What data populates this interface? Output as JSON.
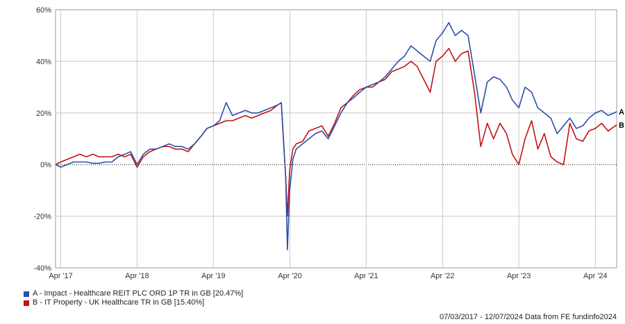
{
  "chart_data": {
    "type": "line",
    "title": "",
    "xlabel": "",
    "ylabel": "",
    "x_start": "2017-03-07",
    "x_end": "2024-07-12",
    "ylim": [
      -40,
      60
    ],
    "y_ticks": [
      -40,
      -20,
      0,
      20,
      40,
      60
    ],
    "y_tick_labels": [
      "-40%",
      "-20%",
      "0%",
      "20%",
      "40%",
      "60%"
    ],
    "x_ticks": [
      {
        "date": "2017-04-01",
        "label": "Apr '17"
      },
      {
        "date": "2018-04-01",
        "label": "Apr '18"
      },
      {
        "date": "2019-04-01",
        "label": "Apr '19"
      },
      {
        "date": "2020-04-01",
        "label": "Apr '20"
      },
      {
        "date": "2021-04-01",
        "label": "Apr '21"
      },
      {
        "date": "2022-04-01",
        "label": "Apr '22"
      },
      {
        "date": "2023-04-01",
        "label": "Apr '23"
      },
      {
        "date": "2024-04-01",
        "label": "Apr '24"
      }
    ],
    "grid": true,
    "zero_line": "dotted",
    "series": [
      {
        "name": "A - Impact - Healthcare REIT PLC ORD 1P TR in GB [20.47%]",
        "end_label": "A",
        "color": "#2850a8",
        "points": [
          [
            "2017-03-07",
            0
          ],
          [
            "2017-04-01",
            -1
          ],
          [
            "2017-05-01",
            0
          ],
          [
            "2017-06-01",
            1
          ],
          [
            "2017-07-01",
            1
          ],
          [
            "2017-08-01",
            1
          ],
          [
            "2017-09-01",
            0.5
          ],
          [
            "2017-10-01",
            0.5
          ],
          [
            "2017-11-01",
            1
          ],
          [
            "2017-12-01",
            1
          ],
          [
            "2018-01-01",
            3
          ],
          [
            "2018-02-01",
            4
          ],
          [
            "2018-03-01",
            5
          ],
          [
            "2018-04-01",
            0
          ],
          [
            "2018-05-01",
            4
          ],
          [
            "2018-06-01",
            6
          ],
          [
            "2018-07-01",
            6
          ],
          [
            "2018-08-01",
            7
          ],
          [
            "2018-09-01",
            8
          ],
          [
            "2018-10-01",
            7
          ],
          [
            "2018-11-01",
            7
          ],
          [
            "2018-12-01",
            6
          ],
          [
            "2019-01-01",
            8
          ],
          [
            "2019-02-01",
            11
          ],
          [
            "2019-03-01",
            14
          ],
          [
            "2019-04-01",
            15
          ],
          [
            "2019-05-01",
            17
          ],
          [
            "2019-06-01",
            24
          ],
          [
            "2019-07-01",
            19
          ],
          [
            "2019-08-01",
            20
          ],
          [
            "2019-09-01",
            21
          ],
          [
            "2019-10-01",
            20
          ],
          [
            "2019-11-01",
            20
          ],
          [
            "2019-12-01",
            21
          ],
          [
            "2020-01-01",
            22
          ],
          [
            "2020-02-01",
            23
          ],
          [
            "2020-02-20",
            24
          ],
          [
            "2020-03-01",
            10
          ],
          [
            "2020-03-12",
            -5
          ],
          [
            "2020-03-20",
            -33
          ],
          [
            "2020-03-31",
            -10
          ],
          [
            "2020-04-15",
            2
          ],
          [
            "2020-05-01",
            6
          ],
          [
            "2020-06-01",
            8
          ],
          [
            "2020-07-01",
            10
          ],
          [
            "2020-08-01",
            12
          ],
          [
            "2020-09-01",
            13
          ],
          [
            "2020-10-01",
            10
          ],
          [
            "2020-11-01",
            15
          ],
          [
            "2020-12-01",
            20
          ],
          [
            "2021-01-01",
            24
          ],
          [
            "2021-02-01",
            26
          ],
          [
            "2021-03-01",
            28
          ],
          [
            "2021-04-01",
            30
          ],
          [
            "2021-05-01",
            31
          ],
          [
            "2021-06-01",
            32
          ],
          [
            "2021-07-01",
            34
          ],
          [
            "2021-08-01",
            37
          ],
          [
            "2021-09-01",
            40
          ],
          [
            "2021-10-01",
            42
          ],
          [
            "2021-11-01",
            46
          ],
          [
            "2021-12-01",
            44
          ],
          [
            "2022-01-01",
            42
          ],
          [
            "2022-02-01",
            40
          ],
          [
            "2022-03-01",
            48
          ],
          [
            "2022-04-01",
            51
          ],
          [
            "2022-05-01",
            55
          ],
          [
            "2022-06-01",
            50
          ],
          [
            "2022-07-01",
            52
          ],
          [
            "2022-08-01",
            50
          ],
          [
            "2022-09-01",
            35
          ],
          [
            "2022-10-01",
            20
          ],
          [
            "2022-11-01",
            32
          ],
          [
            "2022-12-01",
            34
          ],
          [
            "2023-01-01",
            33
          ],
          [
            "2023-02-01",
            30
          ],
          [
            "2023-03-01",
            25
          ],
          [
            "2023-04-01",
            22
          ],
          [
            "2023-05-01",
            30
          ],
          [
            "2023-06-01",
            28
          ],
          [
            "2023-07-01",
            22
          ],
          [
            "2023-08-01",
            20
          ],
          [
            "2023-09-01",
            18
          ],
          [
            "2023-10-01",
            12
          ],
          [
            "2023-11-01",
            15
          ],
          [
            "2023-12-01",
            18
          ],
          [
            "2024-01-01",
            14
          ],
          [
            "2024-02-01",
            15
          ],
          [
            "2024-03-01",
            18
          ],
          [
            "2024-04-01",
            20
          ],
          [
            "2024-05-01",
            21
          ],
          [
            "2024-06-01",
            19
          ],
          [
            "2024-07-12",
            20.47
          ]
        ]
      },
      {
        "name": "B - IT Property - UK Healthcare TR in GB [15.40%]",
        "end_label": "B",
        "color": "#c41010",
        "points": [
          [
            "2017-03-07",
            0
          ],
          [
            "2017-04-01",
            1
          ],
          [
            "2017-05-01",
            2
          ],
          [
            "2017-06-01",
            3
          ],
          [
            "2017-07-01",
            4
          ],
          [
            "2017-08-01",
            3
          ],
          [
            "2017-09-01",
            4
          ],
          [
            "2017-10-01",
            3
          ],
          [
            "2017-11-01",
            3
          ],
          [
            "2017-12-01",
            3
          ],
          [
            "2018-01-01",
            4
          ],
          [
            "2018-02-01",
            3
          ],
          [
            "2018-03-01",
            4
          ],
          [
            "2018-04-01",
            -1
          ],
          [
            "2018-05-01",
            3
          ],
          [
            "2018-06-01",
            5
          ],
          [
            "2018-07-01",
            6
          ],
          [
            "2018-08-01",
            7
          ],
          [
            "2018-09-01",
            7
          ],
          [
            "2018-10-01",
            6
          ],
          [
            "2018-11-01",
            6
          ],
          [
            "2018-12-01",
            5
          ],
          [
            "2019-01-01",
            8
          ],
          [
            "2019-02-01",
            11
          ],
          [
            "2019-03-01",
            14
          ],
          [
            "2019-04-01",
            15
          ],
          [
            "2019-05-01",
            16
          ],
          [
            "2019-06-01",
            17
          ],
          [
            "2019-07-01",
            17
          ],
          [
            "2019-08-01",
            18
          ],
          [
            "2019-09-01",
            19
          ],
          [
            "2019-10-01",
            18
          ],
          [
            "2019-11-01",
            19
          ],
          [
            "2019-12-01",
            20
          ],
          [
            "2020-01-01",
            21
          ],
          [
            "2020-02-01",
            23
          ],
          [
            "2020-02-20",
            24
          ],
          [
            "2020-03-01",
            10
          ],
          [
            "2020-03-12",
            -5
          ],
          [
            "2020-03-20",
            -20
          ],
          [
            "2020-03-31",
            -2
          ],
          [
            "2020-04-15",
            6
          ],
          [
            "2020-05-01",
            8
          ],
          [
            "2020-06-01",
            9
          ],
          [
            "2020-07-01",
            13
          ],
          [
            "2020-08-01",
            14
          ],
          [
            "2020-09-01",
            15
          ],
          [
            "2020-10-01",
            11
          ],
          [
            "2020-11-01",
            16
          ],
          [
            "2020-12-01",
            22
          ],
          [
            "2021-01-01",
            24
          ],
          [
            "2021-02-01",
            27
          ],
          [
            "2021-03-01",
            29
          ],
          [
            "2021-04-01",
            30
          ],
          [
            "2021-05-01",
            30
          ],
          [
            "2021-06-01",
            32
          ],
          [
            "2021-07-01",
            33
          ],
          [
            "2021-08-01",
            36
          ],
          [
            "2021-09-01",
            37
          ],
          [
            "2021-10-01",
            38
          ],
          [
            "2021-11-01",
            40
          ],
          [
            "2021-12-01",
            38
          ],
          [
            "2022-01-01",
            33
          ],
          [
            "2022-02-01",
            28
          ],
          [
            "2022-03-01",
            40
          ],
          [
            "2022-04-01",
            42
          ],
          [
            "2022-05-01",
            45
          ],
          [
            "2022-06-01",
            40
          ],
          [
            "2022-07-01",
            43
          ],
          [
            "2022-08-01",
            44
          ],
          [
            "2022-09-01",
            28
          ],
          [
            "2022-10-01",
            7
          ],
          [
            "2022-11-01",
            16
          ],
          [
            "2022-12-01",
            10
          ],
          [
            "2023-01-01",
            16
          ],
          [
            "2023-02-01",
            12
          ],
          [
            "2023-03-01",
            4
          ],
          [
            "2023-04-01",
            0
          ],
          [
            "2023-05-01",
            10
          ],
          [
            "2023-06-01",
            17
          ],
          [
            "2023-07-01",
            6
          ],
          [
            "2023-08-01",
            12
          ],
          [
            "2023-09-01",
            3
          ],
          [
            "2023-10-01",
            1
          ],
          [
            "2023-11-01",
            0
          ],
          [
            "2023-12-01",
            16
          ],
          [
            "2024-01-01",
            10
          ],
          [
            "2024-02-01",
            9
          ],
          [
            "2024-03-01",
            13
          ],
          [
            "2024-04-01",
            14
          ],
          [
            "2024-05-01",
            16
          ],
          [
            "2024-06-01",
            13
          ],
          [
            "2024-07-12",
            15.4
          ]
        ]
      }
    ]
  },
  "legend": {
    "entries": [
      {
        "label": "A - Impact - Healthcare REIT PLC ORD 1P TR in GB [20.47%]",
        "color": "#2850a8"
      },
      {
        "label": "B - IT Property - UK Healthcare TR in GB [15.40%]",
        "color": "#c41010"
      }
    ]
  },
  "footer": {
    "text": "07/03/2017 - 12/07/2024 Data from FE fundinfo2024"
  }
}
